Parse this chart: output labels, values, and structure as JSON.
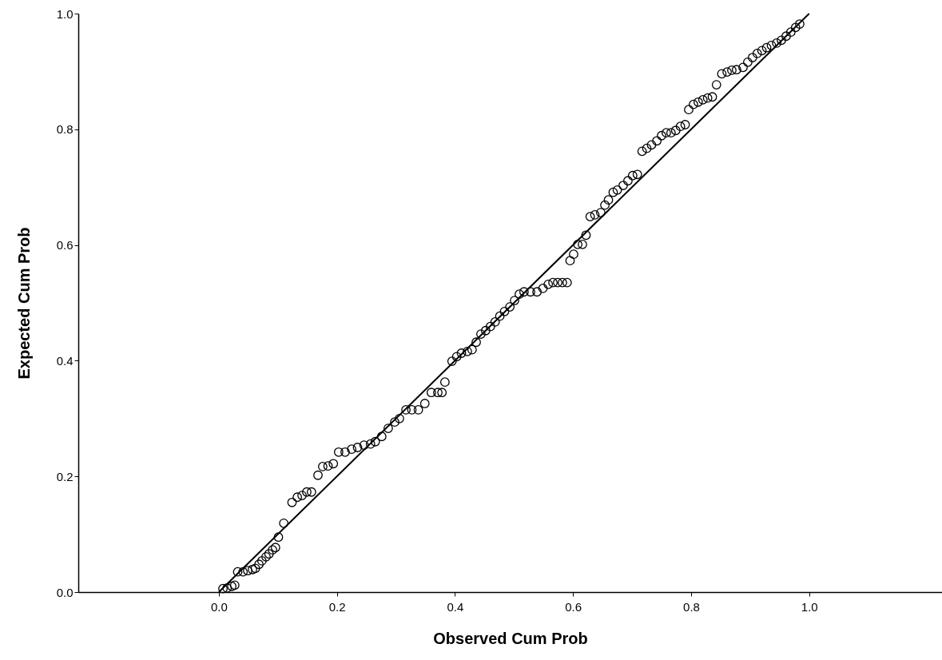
{
  "chart_data": {
    "type": "scatter",
    "xlabel": "Observed Cum Prob",
    "ylabel": "Expected Cum Prob",
    "marker": "circle",
    "grid": false,
    "xlim": [
      -0.238,
      1.225
    ],
    "ylim": [
      0,
      1
    ],
    "xticks": [
      {
        "value": 0,
        "label": "0.0"
      },
      {
        "value": 0.2,
        "label": "0.2"
      },
      {
        "value": 0.4,
        "label": "0.4"
      },
      {
        "value": 0.6,
        "label": "0.6"
      },
      {
        "value": 0.8,
        "label": "0.8"
      },
      {
        "value": 1,
        "label": "1.0"
      }
    ],
    "yticks": [
      {
        "value": 0,
        "label": "0.0"
      },
      {
        "value": 0.2,
        "label": "0.2"
      },
      {
        "value": 0.4,
        "label": "0.4"
      },
      {
        "value": 0.6,
        "label": "0.6"
      },
      {
        "value": 0.8,
        "label": "0.8"
      },
      {
        "value": 1,
        "label": "1.0"
      }
    ],
    "series": [
      {
        "color": "#000000",
        "x": [
          0.007,
          0.014,
          0.022,
          0.027,
          0.032,
          0.041,
          0.049,
          0.057,
          0.062,
          0.068,
          0.073,
          0.08,
          0.085,
          0.091,
          0.096,
          0.101,
          0.11,
          0.124,
          0.133,
          0.141,
          0.149,
          0.157,
          0.168,
          0.176,
          0.185,
          0.194,
          0.203,
          0.214,
          0.225,
          0.235,
          0.246,
          0.257,
          0.265,
          0.276,
          0.287,
          0.298,
          0.306,
          0.317,
          0.327,
          0.338,
          0.349,
          0.36,
          0.371,
          0.378,
          0.383,
          0.395,
          0.403,
          0.411,
          0.421,
          0.429,
          0.436,
          0.444,
          0.452,
          0.46,
          0.468,
          0.476,
          0.484,
          0.493,
          0.501,
          0.509,
          0.517,
          0.528,
          0.539,
          0.549,
          0.558,
          0.566,
          0.574,
          0.582,
          0.59,
          0.595,
          0.601,
          0.608,
          0.616,
          0.622,
          0.629,
          0.637,
          0.647,
          0.654,
          0.66,
          0.668,
          0.675,
          0.685,
          0.693,
          0.701,
          0.709,
          0.717,
          0.725,
          0.733,
          0.742,
          0.75,
          0.758,
          0.766,
          0.774,
          0.782,
          0.79,
          0.796,
          0.804,
          0.812,
          0.82,
          0.828,
          0.836,
          0.843,
          0.852,
          0.861,
          0.869,
          0.877,
          0.888,
          0.896,
          0.904,
          0.912,
          0.92,
          0.928,
          0.936,
          0.945,
          0.953,
          0.961,
          0.969,
          0.977,
          0.984
        ],
        "values": [
          0.006,
          0.007,
          0.01,
          0.012,
          0.035,
          0.035,
          0.037,
          0.039,
          0.041,
          0.048,
          0.054,
          0.061,
          0.066,
          0.073,
          0.077,
          0.095,
          0.119,
          0.155,
          0.164,
          0.167,
          0.173,
          0.173,
          0.202,
          0.217,
          0.218,
          0.222,
          0.242,
          0.242,
          0.247,
          0.25,
          0.254,
          0.256,
          0.26,
          0.269,
          0.283,
          0.294,
          0.3,
          0.315,
          0.315,
          0.315,
          0.326,
          0.345,
          0.345,
          0.345,
          0.363,
          0.399,
          0.407,
          0.413,
          0.416,
          0.419,
          0.432,
          0.446,
          0.452,
          0.459,
          0.467,
          0.477,
          0.485,
          0.493,
          0.504,
          0.515,
          0.519,
          0.519,
          0.519,
          0.525,
          0.532,
          0.535,
          0.535,
          0.535,
          0.535,
          0.573,
          0.584,
          0.601,
          0.601,
          0.617,
          0.649,
          0.652,
          0.656,
          0.669,
          0.678,
          0.691,
          0.695,
          0.703,
          0.711,
          0.72,
          0.722,
          0.762,
          0.767,
          0.773,
          0.78,
          0.789,
          0.794,
          0.794,
          0.798,
          0.805,
          0.808,
          0.834,
          0.843,
          0.847,
          0.851,
          0.854,
          0.856,
          0.877,
          0.896,
          0.899,
          0.902,
          0.903,
          0.907,
          0.916,
          0.924,
          0.931,
          0.936,
          0.941,
          0.945,
          0.949,
          0.954,
          0.961,
          0.968,
          0.976,
          0.982
        ]
      },
      {
        "type": "line",
        "marker": "none",
        "color": "#000000",
        "x": [
          0,
          1
        ],
        "values": [
          0,
          1
        ]
      }
    ]
  }
}
